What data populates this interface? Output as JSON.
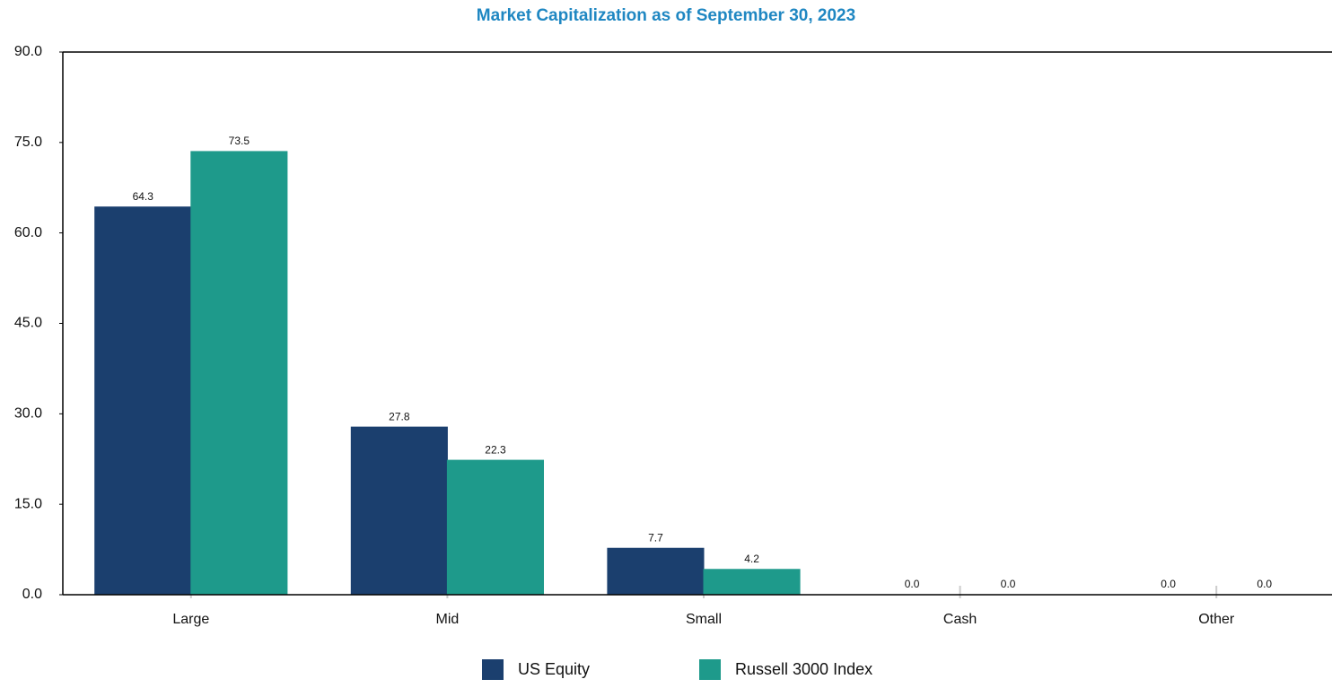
{
  "chart_data": {
    "type": "bar",
    "title": "Market Capitalization as of September 30, 2023",
    "categories": [
      "Large",
      "Mid",
      "Small",
      "Cash",
      "Other"
    ],
    "series": [
      {
        "name": "US Equity",
        "color": "#1b3f6e",
        "values": [
          64.3,
          27.8,
          7.7,
          0,
          0
        ],
        "value_labels": [
          "64.3",
          "27.8",
          "7.7",
          "0.0",
          "0.0"
        ]
      },
      {
        "name": "Russell 3000 Index",
        "color": "#1e9a8b",
        "values": [
          73.5,
          22.3,
          4.2,
          0,
          0
        ],
        "value_labels": [
          "73.5",
          "22.3",
          "4.2",
          "0.0",
          "0.0"
        ]
      }
    ],
    "ylim": [
      0,
      90
    ],
    "yticks": [
      {
        "value": 0,
        "label": "0.0"
      },
      {
        "value": 15,
        "label": "15.0"
      },
      {
        "value": 30,
        "label": "30.0"
      },
      {
        "value": 45,
        "label": "45.0"
      },
      {
        "value": 60,
        "label": "60.0"
      },
      {
        "value": 75,
        "label": "75.0"
      },
      {
        "value": 90,
        "label": "90.0"
      }
    ],
    "legend": "bottom"
  }
}
